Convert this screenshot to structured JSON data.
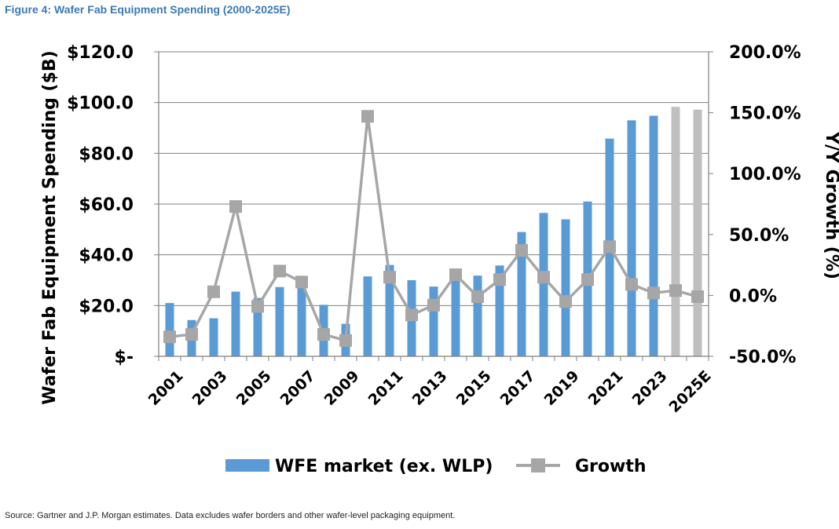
{
  "figure": {
    "title": "Figure 4: Wafer Fab Equipment Spending (2000-2025E)",
    "source": "Source: Gartner and J.P. Morgan estimates. Data excludes wafer borders and other wafer-level packaging equipment."
  },
  "colors": {
    "actual_bar": "#5b9bd5",
    "estimate_bar": "#bfbfbf",
    "growth_line": "#a6a6a6",
    "gridline": "#808080",
    "title": "#3d79b5"
  },
  "chart_data": {
    "type": "bar",
    "title": "Wafer Fab Equipment Spending (2000-2025E)",
    "categories": [
      "2001",
      "2002",
      "2003",
      "2004",
      "2005",
      "2006",
      "2007",
      "2008",
      "2009",
      "2010",
      "2011",
      "2012",
      "2013",
      "2014",
      "2015",
      "2016",
      "2017",
      "2018",
      "2019",
      "2020",
      "2021",
      "2022",
      "2023",
      "2024E",
      "2025E"
    ],
    "x_tick_labels": [
      "2001",
      "2003",
      "2005",
      "2007",
      "2009",
      "2011",
      "2013",
      "2015",
      "2017",
      "2019",
      "2021",
      "2023",
      "2025E"
    ],
    "estimate_from_index": 23,
    "series": [
      {
        "name": "WFE market (ex. WLP)",
        "type": "bar",
        "axis": "left",
        "values": [
          21.0,
          14.3,
          15.0,
          25.5,
          23.0,
          27.3,
          28.3,
          20.3,
          12.8,
          31.5,
          36.0,
          30.0,
          27.5,
          33.0,
          31.8,
          35.8,
          49.0,
          56.5,
          54.0,
          61.0,
          85.8,
          93.0,
          94.8,
          98.3,
          97.2
        ]
      },
      {
        "name": "Growth",
        "type": "line",
        "axis": "right",
        "values": [
          -34.0,
          -32.0,
          3.0,
          73.0,
          -9.0,
          20.0,
          11.0,
          -32.0,
          -37.0,
          147.0,
          15.0,
          -16.0,
          -8.0,
          17.0,
          -1.0,
          13.0,
          37.0,
          15.0,
          -5.0,
          13.0,
          40.0,
          9.0,
          2.0,
          4.0,
          -1.0
        ]
      }
    ],
    "left_axis": {
      "label": "Wafer Fab Equipment Spending ($B)",
      "ylim": [
        0,
        120
      ],
      "ticks": [
        0,
        20,
        40,
        60,
        80,
        100,
        120
      ],
      "tick_labels": [
        "$-",
        "$20.0",
        "$40.0",
        "$60.0",
        "$80.0",
        "$100.0",
        "$120.0"
      ]
    },
    "right_axis": {
      "label": "Y/Y Growth (%)",
      "ylim": [
        -50,
        200
      ],
      "ticks": [
        -50,
        0,
        50,
        100,
        150,
        200
      ],
      "tick_labels": [
        "-50.0%",
        "0.0%",
        "50.0%",
        "100.0%",
        "150.0%",
        "200.0%"
      ]
    },
    "grid": true,
    "legend": [
      "WFE market (ex. WLP)",
      "Growth"
    ],
    "legend_position": "bottom"
  }
}
